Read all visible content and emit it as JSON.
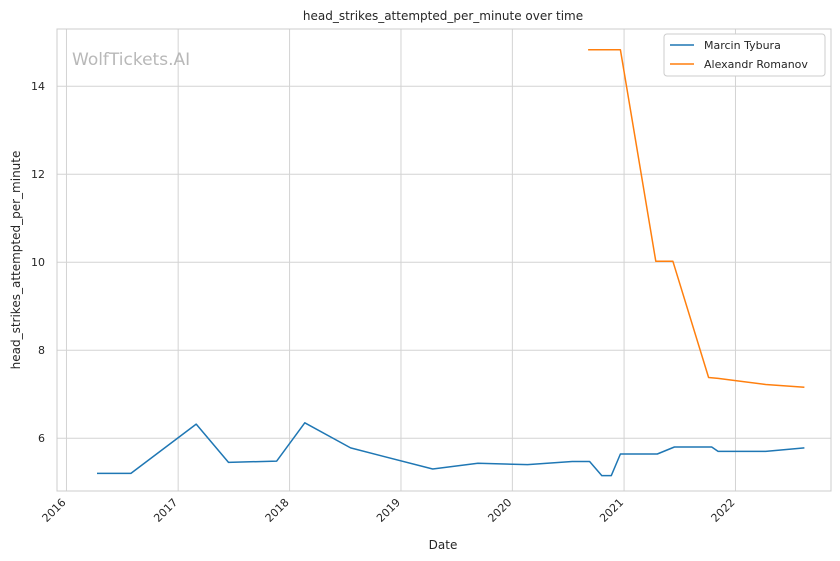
{
  "watermark": "WolfTickets.AI",
  "chart_data": {
    "type": "line",
    "title": "head_strikes_attempted_per_minute over time",
    "xlabel": "Date",
    "ylabel": "head_strikes_attempted_per_minute",
    "x_ticks": [
      "2016",
      "2017",
      "2018",
      "2019",
      "2020",
      "2021",
      "2022"
    ],
    "y_ticks": [
      6,
      8,
      10,
      12,
      14
    ],
    "xlim": [
      "2015-12-01",
      "2022-11-10"
    ],
    "ylim": [
      4.8,
      15.3
    ],
    "grid": true,
    "legend_position": "top-right",
    "series": [
      {
        "name": "Marcin Tybura",
        "color": "#1f77b4",
        "points": [
          {
            "x": "2016-04-10",
            "y": 5.2
          },
          {
            "x": "2016-07-30",
            "y": 5.2
          },
          {
            "x": "2017-03-01",
            "y": 6.32
          },
          {
            "x": "2017-06-15",
            "y": 5.45
          },
          {
            "x": "2017-11-20",
            "y": 5.48
          },
          {
            "x": "2018-02-20",
            "y": 6.35
          },
          {
            "x": "2018-07-20",
            "y": 5.78
          },
          {
            "x": "2019-04-15",
            "y": 5.3
          },
          {
            "x": "2019-09-10",
            "y": 5.43
          },
          {
            "x": "2020-02-20",
            "y": 5.4
          },
          {
            "x": "2020-07-15",
            "y": 5.47
          },
          {
            "x": "2020-09-10",
            "y": 5.47
          },
          {
            "x": "2020-10-20",
            "y": 5.15
          },
          {
            "x": "2020-11-20",
            "y": 5.15
          },
          {
            "x": "2020-12-20",
            "y": 5.64
          },
          {
            "x": "2021-04-20",
            "y": 5.64
          },
          {
            "x": "2021-06-15",
            "y": 5.8
          },
          {
            "x": "2021-10-15",
            "y": 5.8
          },
          {
            "x": "2021-11-05",
            "y": 5.7
          },
          {
            "x": "2022-04-10",
            "y": 5.7
          },
          {
            "x": "2022-08-15",
            "y": 5.78
          }
        ]
      },
      {
        "name": "Alexandr Romanov",
        "color": "#ff7f0e",
        "points": [
          {
            "x": "2020-09-05",
            "y": 14.83
          },
          {
            "x": "2020-12-20",
            "y": 14.83
          },
          {
            "x": "2021-04-15",
            "y": 10.02
          },
          {
            "x": "2021-06-10",
            "y": 10.02
          },
          {
            "x": "2021-10-05",
            "y": 7.38
          },
          {
            "x": "2021-11-05",
            "y": 7.36
          },
          {
            "x": "2022-04-10",
            "y": 7.22
          },
          {
            "x": "2022-08-15",
            "y": 7.16
          }
        ]
      }
    ]
  }
}
